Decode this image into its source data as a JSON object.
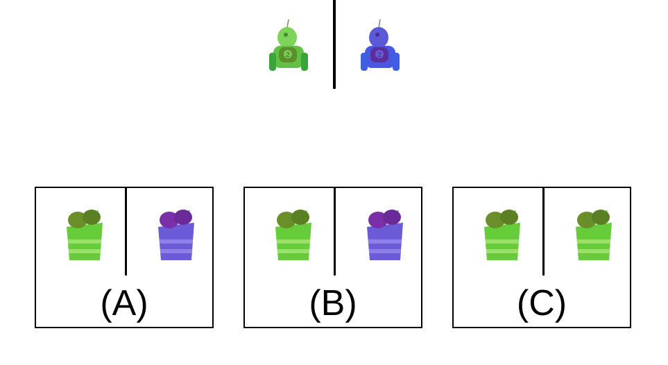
{
  "question": {
    "figures": [
      {
        "icon": "robot-icon",
        "color": "green"
      },
      {
        "icon": "robot-icon",
        "color": "blue-purple"
      }
    ]
  },
  "options": [
    {
      "label": "(A)",
      "cakes": [
        {
          "icon": "strawberry-cake-icon",
          "color": "green"
        },
        {
          "icon": "strawberry-cake-icon",
          "color": "purple"
        }
      ]
    },
    {
      "label": "(B)",
      "cakes": [
        {
          "icon": "strawberry-cake-icon",
          "color": "green"
        },
        {
          "icon": "strawberry-cake-icon",
          "color": "purple"
        }
      ]
    },
    {
      "label": "(C)",
      "cakes": [
        {
          "icon": "strawberry-cake-icon",
          "color": "green"
        },
        {
          "icon": "strawberry-cake-icon",
          "color": "green"
        }
      ]
    }
  ],
  "colors": {
    "green_body": "#5cc84a",
    "green_dark": "#3f8f2c",
    "purple_body": "#6b5bd6",
    "purple_dark": "#5a2f9a",
    "blue_body": "#4a57e0"
  }
}
